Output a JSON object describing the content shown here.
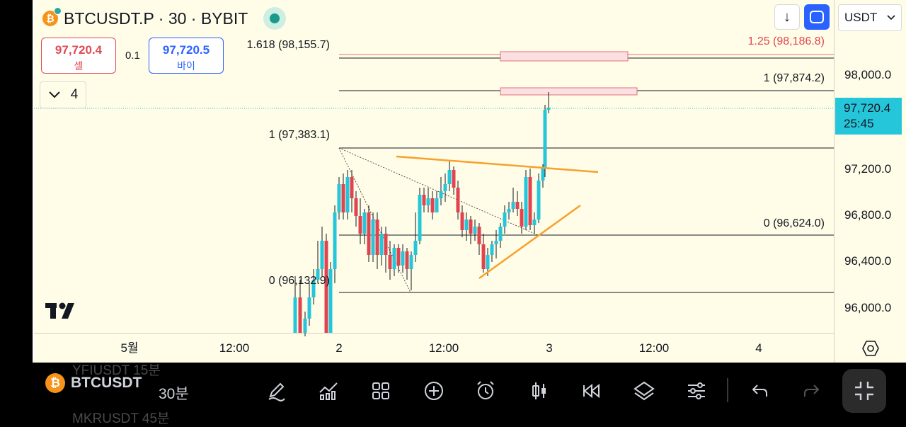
{
  "header": {
    "symbol_title": "BTCUSDT.P · 30 · BYBIT",
    "sell": {
      "price": "97,720.4",
      "label": "셀"
    },
    "spread": "0.1",
    "buy": {
      "price": "97,720.5",
      "label": "바이"
    },
    "indicator_count": "4",
    "currency": "USDT",
    "down_arrow": "↓"
  },
  "price_axis": {
    "ticks": [
      "98,000.0",
      "97,200.0",
      "96,800.0",
      "96,400.0",
      "96,000.0"
    ],
    "last_price": "97,720.4",
    "countdown": "25:45"
  },
  "time_axis": {
    "ticks": [
      "5월",
      "12:00",
      "2",
      "12:00",
      "3",
      "12:00",
      "4"
    ]
  },
  "fib_labels": {
    "upper_1618": "1.618 (98,155.7)",
    "upper_125": "1.25 (98,186.8)",
    "upper_1": "1 (97,874.2)",
    "upper_0": "0 (96,624.0)",
    "lower_1": "1 (97,383.1)",
    "lower_0": "0 (96,132.9)"
  },
  "colors": {
    "up": "#26c6da",
    "down": "#e0454f",
    "trendline": "#f7a02c",
    "fib_line": "#131722",
    "accent": "#2962ff"
  },
  "bottom_bar": {
    "ghost_above": "YFIUSDT    15분",
    "symbol": "BTCUSDT",
    "interval": "30분",
    "ghost_below": "MKRUSDT    45분",
    "icons": [
      "pen-icon",
      "indicators-icon",
      "layout-grid-icon",
      "add-icon",
      "alarm-icon",
      "candle-type-icon",
      "replay-icon",
      "layers-icon",
      "settings-sliders-icon",
      "undo-icon",
      "redo-icon",
      "fullscreen-exit-icon"
    ]
  }
}
